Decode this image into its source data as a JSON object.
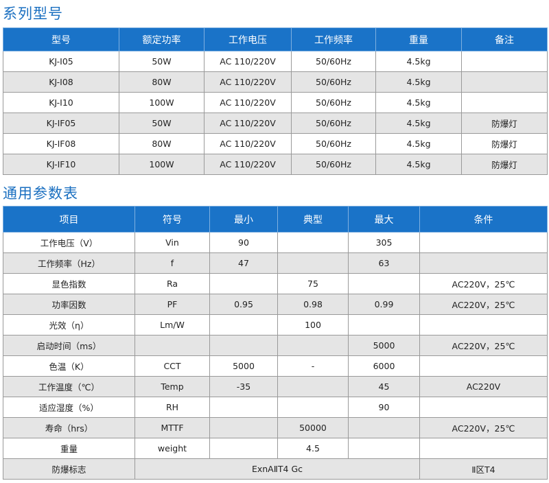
{
  "series_table": {
    "title": "系列型号",
    "headers": [
      "型号",
      "额定功率",
      "工作电压",
      "工作频率",
      "重量",
      "备注"
    ],
    "rows": [
      [
        "KJ-I05",
        "50W",
        "AC 110/220V",
        "50/60Hz",
        "4.5kg",
        ""
      ],
      [
        "KJ-I08",
        "80W",
        "AC 110/220V",
        "50/60Hz",
        "4.5kg",
        ""
      ],
      [
        "KJ-I10",
        "100W",
        "AC 110/220V",
        "50/60Hz",
        "4.5kg",
        ""
      ],
      [
        "KJ-IF05",
        "50W",
        "AC 110/220V",
        "50/60Hz",
        "4.5kg",
        "防爆灯"
      ],
      [
        "KJ-IF08",
        "80W",
        "AC 110/220V",
        "50/60Hz",
        "4.5kg",
        "防爆灯"
      ],
      [
        "KJ-IF10",
        "100W",
        "AC 110/220V",
        "50/60Hz",
        "4.5kg",
        "防爆灯"
      ]
    ]
  },
  "params_table": {
    "title": "通用参数表",
    "headers": [
      "项目",
      "符号",
      "最小",
      "典型",
      "最大",
      "条件"
    ],
    "rows": [
      [
        "工作电压（V）",
        "Vin",
        "90",
        "",
        "305",
        ""
      ],
      [
        "工作频率（Hz）",
        "f",
        "47",
        "",
        "63",
        ""
      ],
      [
        "显色指数",
        "Ra",
        "",
        "75",
        "",
        "AC220V，25℃"
      ],
      [
        "功率因数",
        "PF",
        "0.95",
        "0.98",
        "0.99",
        "AC220V，25℃"
      ],
      [
        "光效（η）",
        "Lm/W",
        "",
        "100",
        "",
        ""
      ],
      [
        "启动时间（ms）",
        "",
        "",
        "",
        "5000",
        "AC220V，25℃"
      ],
      [
        "色温（K）",
        "CCT",
        "5000",
        "-",
        "6000",
        ""
      ],
      [
        "工作温度（℃）",
        "Temp",
        "-35",
        "",
        "45",
        "AC220V"
      ],
      [
        "适应湿度（%）",
        "RH",
        "",
        "",
        "90",
        ""
      ],
      [
        "寿命（hrs）",
        "MTTF",
        "",
        "50000",
        "",
        "AC220V，25℃"
      ],
      [
        "重量",
        "weight",
        "",
        "4.5",
        "",
        ""
      ]
    ],
    "last_row": [
      "防爆标志",
      "ExnAⅡT4 Gc",
      "Ⅱ区T4"
    ]
  }
}
